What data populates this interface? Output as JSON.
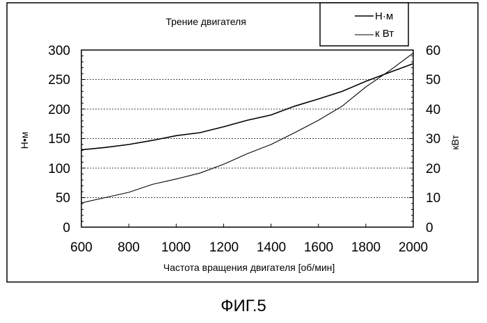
{
  "caption": "ФИГ.5",
  "chart_data": {
    "type": "line",
    "title": "Трение двигателя",
    "xlabel": "Частота вращения двигателя [об/мин]",
    "ylabel_left": "Н•м",
    "ylabel_right": "кВт",
    "xlim": [
      600,
      2000
    ],
    "ylim_left": [
      0,
      300
    ],
    "ylim_right": [
      0,
      60
    ],
    "x_ticks": [
      "600",
      "800",
      "1000",
      "1200",
      "1400",
      "1600",
      "1800",
      "2000"
    ],
    "y_ticks_left": [
      "0",
      "50",
      "100",
      "150",
      "200",
      "250",
      "300"
    ],
    "y_ticks_right": [
      "0",
      "10",
      "20",
      "30",
      "40",
      "50",
      "60"
    ],
    "grid": "horizontal",
    "legend_position": "top-right",
    "series": [
      {
        "name": "Н·м",
        "axis": "left",
        "x": [
          600,
          700,
          800,
          900,
          1000,
          1100,
          1200,
          1300,
          1400,
          1500,
          1600,
          1700,
          1800,
          1900,
          2000
        ],
        "values": [
          131,
          135,
          140,
          147,
          155,
          160,
          170,
          181,
          190,
          205,
          217,
          230,
          247,
          262,
          277
        ]
      },
      {
        "name": "к Вт",
        "axis": "right",
        "x": [
          600,
          700,
          800,
          900,
          1000,
          1100,
          1200,
          1300,
          1400,
          1500,
          1600,
          1700,
          1800,
          1900,
          2000
        ],
        "values": [
          8.2,
          10,
          11.8,
          14.5,
          16.3,
          18.3,
          21.3,
          24.9,
          28,
          32,
          36.2,
          41,
          47.5,
          53,
          59
        ]
      }
    ]
  }
}
